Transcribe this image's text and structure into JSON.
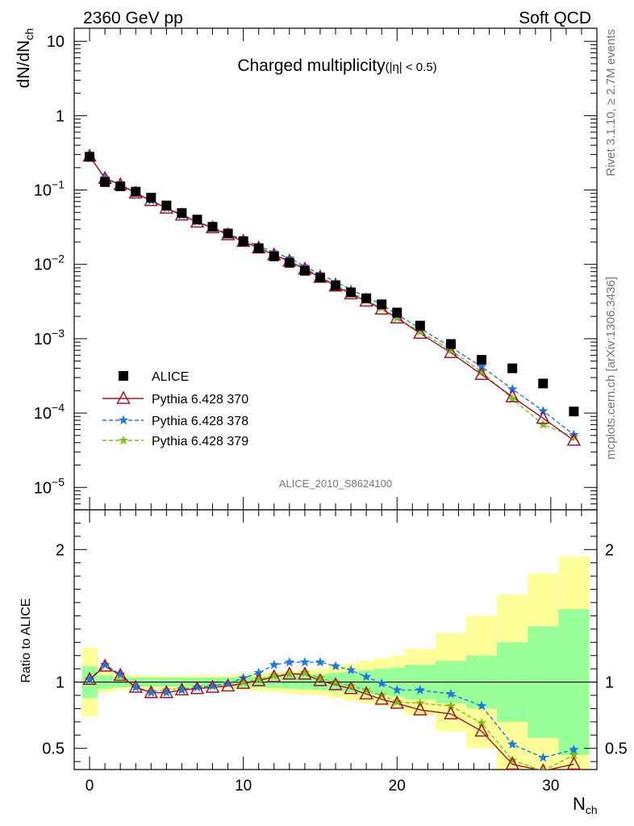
{
  "header": {
    "left": "2360 GeV pp",
    "right": "Soft QCD"
  },
  "side_text": {
    "top": "Rivet 3.1.10, ≥ 2.7M events",
    "bottom": "mcplots.cern.ch [arXiv:1306.3436]"
  },
  "analysis_label": "ALICE_2010_S8624100",
  "colors": {
    "alice": "#000000",
    "p370": "#a0162e",
    "p378": "#1e78e0",
    "p379": "#7fbf1e",
    "band_yellow": "#ffff99",
    "band_green": "#99ff99"
  },
  "chart_data": [
    {
      "type": "scatter",
      "title": "Charged multiplicity",
      "title_suffix": "(|η| < 0.5)",
      "ylabel_main": "dN/dN",
      "ylabel_sub": "ch",
      "yscale": "log",
      "ylim": [
        5e-06,
        15
      ],
      "xlim": [
        -1,
        33
      ],
      "y_tick_mantissa": "10",
      "y_ticks": [
        {
          "value": 10,
          "label": "10"
        },
        {
          "value": 1,
          "label": "1"
        },
        {
          "value": 0.1,
          "exp": "−1"
        },
        {
          "value": 0.01,
          "exp": "−2"
        },
        {
          "value": 0.001,
          "exp": "−3"
        },
        {
          "value": 0.0001,
          "exp": "−4"
        },
        {
          "value": 1e-05,
          "exp": "−5"
        }
      ],
      "legend_position": "middle-left",
      "series": [
        {
          "name": "ALICE",
          "marker": "square",
          "color": "#000000",
          "x": [
            0,
            1,
            2,
            3,
            4,
            5,
            6,
            7,
            8,
            9,
            10,
            11,
            12,
            13,
            14,
            15,
            16,
            17,
            18,
            19,
            20,
            21.5,
            23.5,
            25.5,
            27.5,
            29.5,
            31.5
          ],
          "y": [
            0.28,
            0.128,
            0.112,
            0.095,
            0.079,
            0.062,
            0.049,
            0.04,
            0.032,
            0.026,
            0.0205,
            0.0165,
            0.0128,
            0.0105,
            0.0082,
            0.0066,
            0.0052,
            0.0042,
            0.0035,
            0.0029,
            0.00225,
            0.0015,
            0.00085,
            0.00052,
            0.0004,
            0.00025,
            0.000105
          ]
        },
        {
          "name": "Pythia 6.428 370",
          "marker": "triangle-open",
          "line": "solid",
          "color": "#a0162e",
          "x": [
            0,
            1,
            2,
            3,
            4,
            5,
            6,
            7,
            8,
            9,
            10,
            11,
            12,
            13,
            14,
            15,
            16,
            17,
            18,
            19,
            20,
            21.5,
            23.5,
            25.5,
            27.5,
            29.5,
            31.5
          ],
          "y": [
            0.285,
            0.143,
            0.118,
            0.091,
            0.072,
            0.057,
            0.046,
            0.037,
            0.031,
            0.025,
            0.0203,
            0.0166,
            0.0134,
            0.011,
            0.0086,
            0.0067,
            0.0051,
            0.004,
            0.0032,
            0.0025,
            0.0019,
            0.00118,
            0.00065,
            0.00033,
            0.000165,
            8.5e-05,
            4.3e-05
          ]
        },
        {
          "name": "Pythia 6.428 378",
          "marker": "star",
          "line": "dashed",
          "color": "#1e78e0",
          "x": [
            0,
            1,
            2,
            3,
            4,
            5,
            6,
            7,
            8,
            9,
            10,
            11,
            12,
            13,
            14,
            15,
            16,
            17,
            18,
            19,
            20,
            21.5,
            23.5,
            25.5,
            27.5,
            29.5,
            31.5
          ],
          "y": [
            0.287,
            0.145,
            0.119,
            0.091,
            0.072,
            0.057,
            0.046,
            0.038,
            0.031,
            0.026,
            0.0213,
            0.0177,
            0.0145,
            0.0121,
            0.0094,
            0.0074,
            0.0058,
            0.0046,
            0.0036,
            0.0029,
            0.0021,
            0.00138,
            0.00077,
            0.00042,
            0.00021,
            0.000107,
            5.1e-05
          ]
        },
        {
          "name": "Pythia 6.428 379",
          "marker": "star",
          "line": "dashed",
          "color": "#7fbf1e",
          "x": [
            0,
            1,
            2,
            3,
            4,
            5,
            6,
            7,
            8,
            9,
            10,
            11,
            12,
            13,
            14,
            15,
            16,
            17,
            18,
            19,
            20,
            21.5,
            23.5,
            25.5,
            27.5,
            29.5,
            31.5
          ],
          "y": [
            0.287,
            0.144,
            0.118,
            0.091,
            0.073,
            0.058,
            0.047,
            0.038,
            0.031,
            0.026,
            0.0206,
            0.0168,
            0.0137,
            0.0111,
            0.0089,
            0.0069,
            0.0053,
            0.0042,
            0.0033,
            0.0026,
            0.0019,
            0.00125,
            0.0007,
            0.00036,
            0.000155,
            7e-05,
            4.8e-05
          ]
        }
      ]
    },
    {
      "type": "line",
      "ylabel": "Ratio to ALICE",
      "xlabel_main": "N",
      "xlabel_sub": "ch",
      "xlim": [
        -1,
        33
      ],
      "ylim": [
        0.34,
        2.3
      ],
      "y_ticks": [
        0.5,
        1,
        2
      ],
      "y_tick_labels": [
        "0.5",
        "1",
        "2"
      ],
      "x_ticks": [
        0,
        10,
        20,
        30
      ],
      "x_tick_labels": [
        "0",
        "10",
        "20",
        "30"
      ],
      "bands": {
        "bins": [
          [
            -0.5,
            0.5
          ],
          [
            0.5,
            1.5
          ],
          [
            1.5,
            2.5
          ],
          [
            2.5,
            3.5
          ],
          [
            3.5,
            4.5
          ],
          [
            4.5,
            5.5
          ],
          [
            5.5,
            6.5
          ],
          [
            6.5,
            7.5
          ],
          [
            7.5,
            8.5
          ],
          [
            8.5,
            9.5
          ],
          [
            9.5,
            10.5
          ],
          [
            10.5,
            11.5
          ],
          [
            11.5,
            12.5
          ],
          [
            12.5,
            13.5
          ],
          [
            13.5,
            14.5
          ],
          [
            14.5,
            15.5
          ],
          [
            15.5,
            16.5
          ],
          [
            16.5,
            17.5
          ],
          [
            17.5,
            18.5
          ],
          [
            18.5,
            19.5
          ],
          [
            19.5,
            20.5
          ],
          [
            20.5,
            22.5
          ],
          [
            22.5,
            24.5
          ],
          [
            24.5,
            26.5
          ],
          [
            26.5,
            28.5
          ],
          [
            28.5,
            30.5
          ],
          [
            30.5,
            32.5
          ]
        ],
        "green_rel": [
          0.12,
          0.05,
          0.04,
          0.035,
          0.035,
          0.035,
          0.035,
          0.035,
          0.035,
          0.035,
          0.04,
          0.04,
          0.045,
          0.05,
          0.055,
          0.06,
          0.07,
          0.08,
          0.09,
          0.1,
          0.11,
          0.13,
          0.16,
          0.2,
          0.3,
          0.42,
          0.55
        ],
        "yellow_rel": [
          0.26,
          0.08,
          0.06,
          0.05,
          0.05,
          0.05,
          0.05,
          0.05,
          0.05,
          0.05,
          0.06,
          0.07,
          0.075,
          0.085,
          0.095,
          0.1,
          0.12,
          0.14,
          0.16,
          0.18,
          0.2,
          0.25,
          0.37,
          0.5,
          0.66,
          0.82,
          0.95
        ]
      },
      "series": [
        {
          "name": "Pythia 6.428 370",
          "x": [
            0,
            1,
            2,
            3,
            4,
            5,
            6,
            7,
            8,
            9,
            10,
            11,
            12,
            13,
            14,
            15,
            16,
            17,
            18,
            19,
            20,
            21.5,
            23.5,
            25.5,
            27.5,
            29.5,
            31.5
          ],
          "y": [
            1.02,
            1.12,
            1.05,
            0.96,
            0.92,
            0.92,
            0.94,
            0.95,
            0.96,
            0.97,
            0.99,
            1.01,
            1.04,
            1.06,
            1.06,
            1.01,
            0.98,
            0.95,
            0.91,
            0.87,
            0.84,
            0.79,
            0.76,
            0.63,
            0.38,
            0.33,
            0.38
          ]
        },
        {
          "name": "Pythia 6.428 378",
          "x": [
            0,
            1,
            2,
            3,
            4,
            5,
            6,
            7,
            8,
            9,
            10,
            11,
            12,
            13,
            14,
            15,
            16,
            17,
            18,
            19,
            20,
            21.5,
            23.5,
            25.5,
            27.5,
            29.5,
            31.5
          ],
          "y": [
            1.02,
            1.13,
            1.06,
            0.96,
            0.92,
            0.92,
            0.94,
            0.96,
            0.97,
            0.99,
            1.03,
            1.07,
            1.13,
            1.15,
            1.15,
            1.15,
            1.12,
            1.09,
            1.04,
            0.99,
            0.94,
            0.94,
            0.91,
            0.82,
            0.53,
            0.43,
            0.49
          ]
        },
        {
          "name": "Pythia 6.428 379",
          "x": [
            0,
            1,
            2,
            3,
            4,
            5,
            6,
            7,
            8,
            9,
            10,
            11,
            12,
            13,
            14,
            15,
            16,
            17,
            18,
            19,
            20,
            21.5,
            23.5,
            25.5,
            27.5,
            29.5,
            31.5
          ],
          "y": [
            1.02,
            1.13,
            1.05,
            0.96,
            0.93,
            0.94,
            0.95,
            0.96,
            0.97,
            0.99,
            1.0,
            1.02,
            1.05,
            1.06,
            1.07,
            1.03,
            1.0,
            0.97,
            0.94,
            0.9,
            0.85,
            0.84,
            0.82,
            0.69,
            0.41,
            0.33,
            0.45
          ]
        }
      ]
    }
  ]
}
